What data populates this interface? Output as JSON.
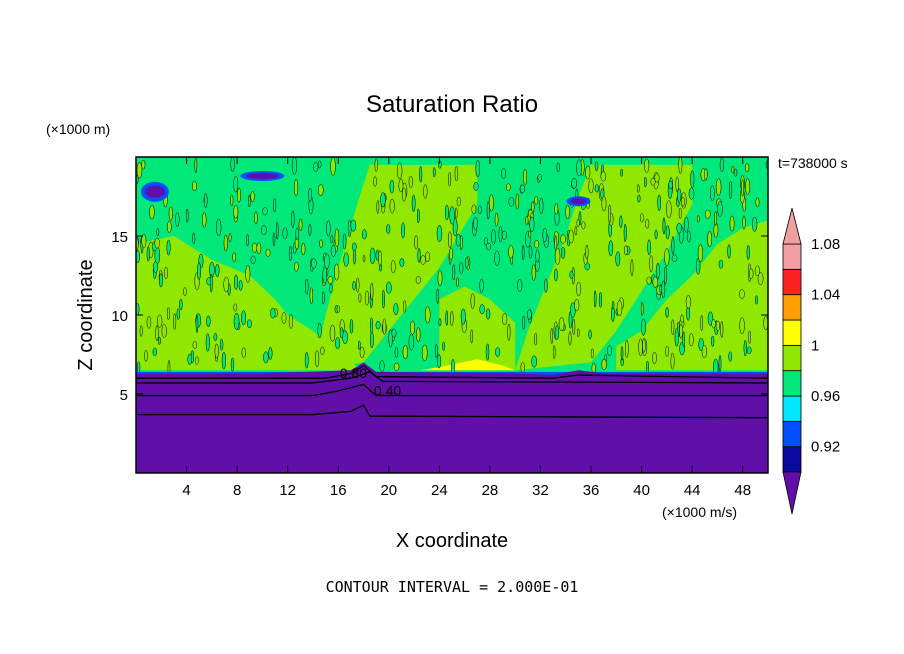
{
  "chart_data": {
    "type": "heatmap",
    "title": "Saturation Ratio",
    "xlabel": "X coordinate",
    "ylabel": "Z coordinate",
    "x_units": "(×1000 m/s)",
    "y_units": "(×1000 m)",
    "time_label": "t=738000 s",
    "footer": "CONTOUR INTERVAL = 2.000E-01",
    "xlim": [
      0,
      50
    ],
    "ylim": [
      0,
      20
    ],
    "x_ticks": [
      4,
      8,
      12,
      16,
      20,
      24,
      28,
      32,
      36,
      40,
      44,
      48
    ],
    "y_ticks": [
      5,
      10,
      15
    ],
    "contour_labels": [
      {
        "text": "0.80",
        "x": 17.2,
        "y": 6.0
      },
      {
        "text": "0.40",
        "x": 19.9,
        "y": 4.9
      }
    ],
    "colorbar": {
      "levels": [
        0.92,
        0.94,
        0.96,
        0.98,
        1.0,
        1.02,
        1.04,
        1.06,
        1.08,
        1.1
      ],
      "tick_labels": [
        "0.92",
        "0.96",
        "1",
        "1.04",
        "1.08"
      ],
      "tick_values": [
        0.92,
        0.96,
        1.0,
        1.04,
        1.08
      ],
      "colors": [
        "#3b10a0",
        "#0a0aa0",
        "#0050ff",
        "#00e8ff",
        "#00e87a",
        "#90e800",
        "#ffff00",
        "#ffa000",
        "#ff2020",
        "#f0a0a0"
      ],
      "under_color": "#6010a8",
      "over_color": "#f0a0a0"
    },
    "regions": {
      "background_moist": "#00e87a",
      "background_sat": "#90e800",
      "dry_layer": "#6010a8",
      "peak": "#ffff00"
    }
  }
}
